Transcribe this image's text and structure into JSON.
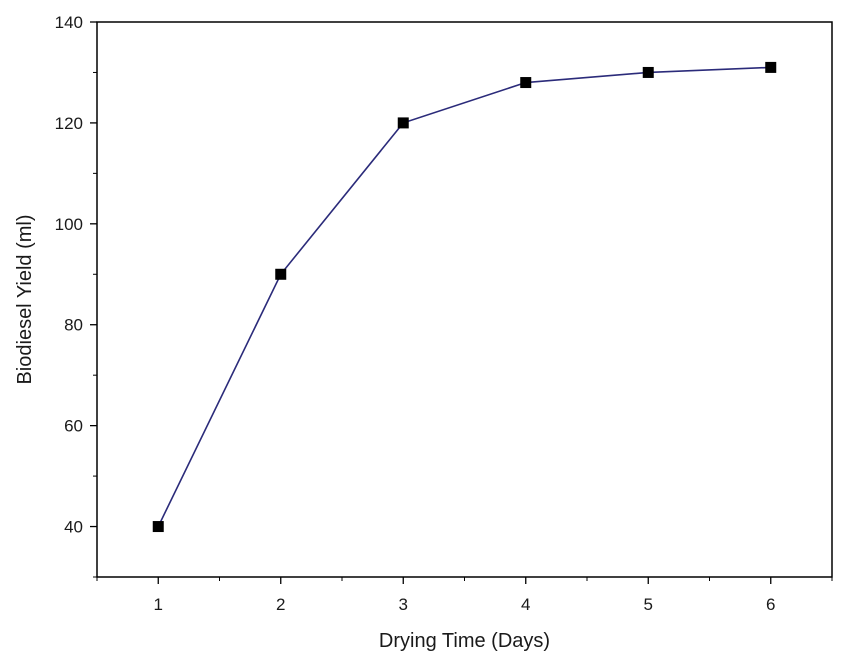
{
  "chart_data": {
    "type": "line",
    "title": "",
    "xlabel": "Drying Time (Days)",
    "ylabel": "Biodiesel Yield (ml)",
    "x": [
      1,
      2,
      3,
      4,
      5,
      6
    ],
    "xlim": [
      0.5,
      6.5
    ],
    "ylim": [
      30,
      140
    ],
    "x_ticks": [
      "1",
      "2",
      "3",
      "4",
      "5",
      "6"
    ],
    "y_ticks": [
      "40",
      "60",
      "80",
      "100",
      "120",
      "140"
    ],
    "series": [
      {
        "values": [
          40,
          90,
          120,
          128,
          130,
          131
        ],
        "color": "#2b2b7a",
        "marker": "square",
        "marker_color": "#000000"
      }
    ],
    "grid": false,
    "legend": "none"
  }
}
